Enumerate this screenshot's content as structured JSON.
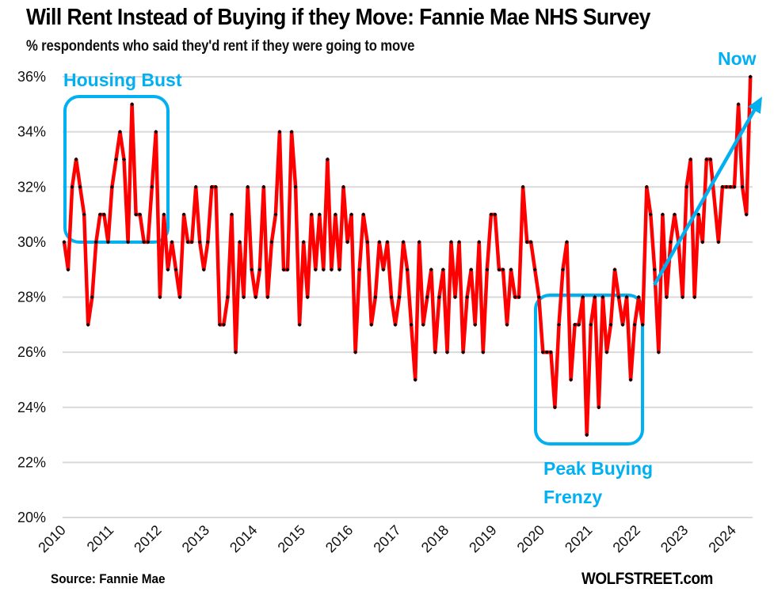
{
  "header": {
    "title": "Will Rent Instead of Buying if they Move: Fannie Mae NHS Survey",
    "subtitle": "% respondents who said they'd rent if they were going to move"
  },
  "footer": {
    "source": "Source: Fannie Mae",
    "brand": "WOLFSTREET.com"
  },
  "colors": {
    "line": "#ff0000",
    "marker": "#000000",
    "annotation": "#00b0f0",
    "grid": "#d9d9d9"
  },
  "chart_data": {
    "type": "line",
    "title": "Will Rent Instead of Buying if they Move: Fannie Mae NHS Survey",
    "subtitle": "% respondents who said they'd rent if they were going to move",
    "xlabel": "",
    "ylabel": "",
    "ylim": [
      20,
      36
    ],
    "yticks": [
      "20%",
      "22%",
      "24%",
      "26%",
      "28%",
      "30%",
      "32%",
      "34%",
      "36%"
    ],
    "ytick_values": [
      20,
      22,
      24,
      26,
      28,
      30,
      32,
      34,
      36
    ],
    "xticks": [
      "2010",
      "2011",
      "2012",
      "2013",
      "2014",
      "2015",
      "2016",
      "2017",
      "2018",
      "2019",
      "2020",
      "2021",
      "2022",
      "2023",
      "2024"
    ],
    "grid": "horizontal",
    "start": "2010-01",
    "frequency": "monthly",
    "series": [
      {
        "name": "Would rent if moving (%)",
        "values": [
          30,
          29,
          32,
          33,
          32,
          31,
          27,
          28,
          30,
          31,
          31,
          30,
          32,
          33,
          34,
          33,
          30,
          35,
          31,
          31,
          30,
          30,
          32,
          34,
          28,
          31,
          29,
          30,
          29,
          28,
          31,
          30,
          30,
          32,
          30,
          29,
          30,
          32,
          32,
          27,
          27,
          28,
          31,
          26,
          30,
          28,
          32,
          29,
          28,
          29,
          32,
          28,
          30,
          31,
          34,
          29,
          29,
          34,
          32,
          27,
          30,
          28,
          31,
          29,
          31,
          29,
          33,
          29,
          31,
          29,
          32,
          30,
          31,
          26,
          29,
          31,
          30,
          27,
          28,
          30,
          29,
          30,
          28,
          27,
          28,
          30,
          29,
          27,
          25,
          30,
          27,
          28,
          29,
          26,
          28,
          29,
          26,
          30,
          28,
          30,
          26,
          28,
          29,
          27,
          30,
          26,
          29,
          31,
          31,
          29,
          29,
          27,
          29,
          28,
          28,
          32,
          30,
          30,
          29,
          28,
          26,
          26,
          26,
          24,
          27,
          29,
          30,
          25,
          27,
          27,
          28,
          23,
          27,
          28,
          24,
          28,
          26,
          27,
          29,
          28,
          27,
          28,
          25,
          27,
          28,
          27,
          32,
          31,
          29,
          26,
          31,
          28,
          30,
          31,
          30,
          28,
          32,
          33,
          28,
          31,
          30,
          33,
          33,
          null,
          30,
          32,
          32,
          32,
          32,
          35,
          32,
          31,
          36
        ]
      }
    ],
    "annotations": [
      {
        "text": "Housing Bust",
        "type": "box",
        "x_range": [
          "2010-01",
          "2012-03"
        ],
        "y_range": [
          30,
          35
        ]
      },
      {
        "text": "Peak Buying Frenzy",
        "type": "box",
        "x_range": [
          "2019-12",
          "2022-03"
        ],
        "y_range": [
          23,
          28
        ]
      },
      {
        "text": "Now",
        "type": "arrow",
        "from": [
          "2022-06",
          28.4
        ],
        "to": [
          "2024-08",
          35.4
        ]
      }
    ]
  }
}
